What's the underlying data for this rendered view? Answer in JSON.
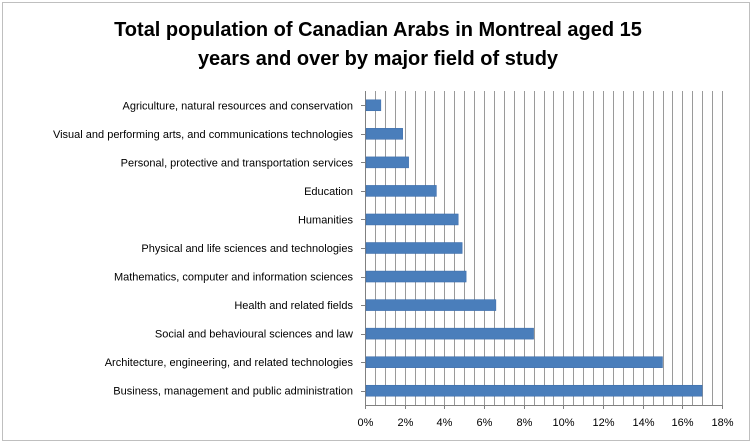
{
  "chart_data": {
    "type": "bar",
    "orientation": "horizontal",
    "title_lines": [
      "Total population of Canadian Arabs in Montreal aged 15",
      "years and over by major field of study"
    ],
    "categories": [
      "Agriculture, natural resources and conservation",
      "Visual and performing arts, and communications technologies",
      "Personal, protective and transportation services",
      "Education",
      "Humanities",
      "Physical and life sciences and technologies",
      "Mathematics, computer and information sciences",
      "Health and related fields",
      "Social and behavioural sciences and law",
      "Architecture, engineering, and related technologies",
      "Business, management and public administration"
    ],
    "values": [
      0.8,
      1.9,
      2.2,
      3.6,
      4.7,
      4.9,
      5.1,
      6.6,
      8.5,
      15.0,
      17.0
    ],
    "xticks": [
      "0%",
      "2%",
      "4%",
      "6%",
      "8%",
      "10%",
      "12%",
      "14%",
      "16%",
      "18%"
    ],
    "xlim": [
      0,
      18
    ],
    "grid": "vertical-minor",
    "bar_color": "#4a7ebb"
  }
}
